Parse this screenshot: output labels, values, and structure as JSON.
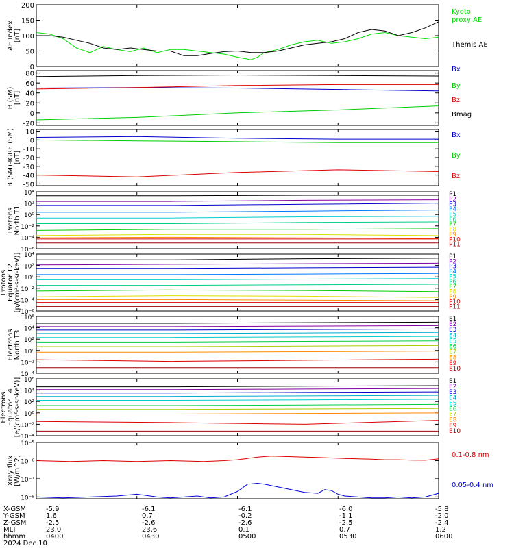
{
  "time_axis": {
    "start": "0400",
    "end": "0600",
    "date": "2024 Dec 10"
  },
  "footer": {
    "rows": [
      {
        "label": "X-GSM",
        "values": [
          "-5.9",
          "-6.1",
          "-6.1",
          "-6.0",
          "-5.8"
        ]
      },
      {
        "label": "Y-GSM",
        "values": [
          "1.6",
          "0.7",
          "-0.2",
          "-1.1",
          "-2.0"
        ]
      },
      {
        "label": "Z-GSM",
        "values": [
          "-2.5",
          "-2.6",
          "-2.6",
          "-2.5",
          "-2.4"
        ]
      },
      {
        "label": "MLT",
        "values": [
          "23.0",
          "23.6",
          "0.1",
          "0.7",
          "1.2"
        ]
      },
      {
        "label": "hhmm",
        "values": [
          "0400",
          "0430",
          "0500",
          "0530",
          "0600"
        ]
      }
    ],
    "date": "2024 Dec 10"
  },
  "chart_data": [
    {
      "type": "line",
      "id": "ae",
      "ylabel": [
        "AE Index",
        "[nT]"
      ],
      "ylim": [
        0,
        200
      ],
      "yticks": [
        "0",
        "50",
        "100",
        "150",
        "200"
      ],
      "scale": "linear",
      "series": [
        {
          "name": "Kyoto proxy AE",
          "legend": [
            "Kyoto",
            "proxy AE"
          ],
          "color": "#00dd00",
          "x": [
            0,
            4,
            8,
            12,
            16,
            20,
            24,
            28,
            32,
            36,
            40,
            44,
            48,
            52,
            56,
            60,
            64,
            66,
            68,
            72,
            76,
            80,
            84,
            88,
            92,
            96,
            100,
            104,
            108,
            112,
            116,
            120
          ],
          "y": [
            110,
            105,
            90,
            60,
            45,
            65,
            55,
            48,
            60,
            45,
            55,
            55,
            50,
            45,
            40,
            30,
            22,
            30,
            45,
            55,
            70,
            80,
            85,
            75,
            80,
            90,
            105,
            110,
            100,
            95,
            90,
            95
          ]
        },
        {
          "name": "Themis AE",
          "legend": [
            "Themis AE"
          ],
          "color": "#000000",
          "x": [
            0,
            4,
            8,
            12,
            16,
            20,
            24,
            28,
            32,
            36,
            40,
            44,
            48,
            52,
            56,
            60,
            64,
            68,
            72,
            76,
            80,
            84,
            88,
            92,
            96,
            100,
            104,
            108,
            112,
            116,
            120
          ],
          "y": [
            100,
            100,
            95,
            85,
            75,
            60,
            55,
            60,
            55,
            50,
            50,
            35,
            35,
            42,
            48,
            50,
            45,
            45,
            50,
            60,
            70,
            75,
            80,
            90,
            110,
            120,
            115,
            100,
            110,
            125,
            145
          ]
        }
      ]
    },
    {
      "type": "line",
      "id": "bsm",
      "ylabel": [
        "B (SM)",
        "[nT]"
      ],
      "ylim": [
        -25,
        85
      ],
      "yticks": [
        "-20",
        "0",
        "20",
        "40",
        "60",
        "80"
      ],
      "scale": "linear",
      "series": [
        {
          "name": "Bx",
          "color": "#0000cc",
          "x": [
            0,
            30,
            60,
            90,
            120
          ],
          "y": [
            50,
            51,
            50,
            47,
            44
          ]
        },
        {
          "name": "By",
          "color": "#00cc00",
          "x": [
            0,
            30,
            60,
            90,
            120
          ],
          "y": [
            -14,
            -9,
            0,
            6,
            14
          ]
        },
        {
          "name": "Bz",
          "color": "#dd0000",
          "x": [
            0,
            30,
            60,
            90,
            120
          ],
          "y": [
            48,
            51,
            55,
            57,
            57
          ]
        },
        {
          "name": "Bmag",
          "color": "#000000",
          "x": [
            0,
            30,
            60,
            90,
            120
          ],
          "y": [
            73,
            75,
            76,
            75,
            74
          ]
        }
      ]
    },
    {
      "type": "line",
      "id": "bigrf",
      "ylabel": [
        "B (SM)-IGRF (SM)",
        "[nT]"
      ],
      "ylim": [
        -52,
        12
      ],
      "yticks": [
        "-50",
        "-40",
        "-30",
        "-20",
        "-10",
        "0",
        "10"
      ],
      "scale": "linear",
      "series": [
        {
          "name": "Bx",
          "color": "#0000cc",
          "x": [
            0,
            30,
            60,
            90,
            120
          ],
          "y": [
            3,
            4,
            2,
            1,
            1
          ]
        },
        {
          "name": "By",
          "color": "#00cc00",
          "x": [
            0,
            30,
            60,
            90,
            120
          ],
          "y": [
            0,
            -1,
            -2,
            -3,
            -3
          ]
        },
        {
          "name": "Bz",
          "color": "#dd0000",
          "x": [
            0,
            30,
            60,
            90,
            120
          ],
          "y": [
            -40,
            -42,
            -37,
            -34,
            -36
          ]
        }
      ]
    },
    {
      "type": "line",
      "id": "p_north",
      "ylabel": [
        "Protons",
        "North T1"
      ],
      "ylim_exp": [
        -6,
        4
      ],
      "ytick_exps": [
        -6,
        -4,
        -2,
        0,
        2,
        4
      ],
      "scale": "log",
      "series": [
        {
          "name": "P1",
          "color": "#000000",
          "y_exp": [
            3.3,
            3.3,
            3.4,
            3.4
          ]
        },
        {
          "name": "P2",
          "color": "#8000a0",
          "y_exp": [
            2.3,
            2.3,
            2.5,
            2.6
          ]
        },
        {
          "name": "P3",
          "color": "#0000cc",
          "y_exp": [
            1.6,
            1.6,
            1.8,
            2.0
          ]
        },
        {
          "name": "P4",
          "color": "#0077ff",
          "y_exp": [
            0.4,
            0.4,
            0.6,
            0.8
          ]
        },
        {
          "name": "P5",
          "color": "#00cccc",
          "y_exp": [
            -0.6,
            -0.6,
            -0.4,
            -0.3
          ]
        },
        {
          "name": "P6",
          "color": "#00cc88",
          "y_exp": [
            -1.6,
            -1.6,
            -1.4,
            -1.3
          ]
        },
        {
          "name": "P7",
          "color": "#00cc00",
          "y_exp": [
            -2.8,
            -2.6,
            -2.6,
            -2.5
          ]
        },
        {
          "name": "P8",
          "color": "#dddd00",
          "y_exp": [
            -3.7,
            -3.5,
            -3.5,
            -3.7
          ]
        },
        {
          "name": "P9",
          "color": "#ff8800",
          "y_exp": [
            -4.1,
            -4.0,
            -4.1,
            -4.2
          ]
        },
        {
          "name": "P10",
          "color": "#dd0000",
          "y_exp": [
            -4.3,
            -4.3,
            -4.3,
            -4.3
          ]
        },
        {
          "name": "P11",
          "color": "#990000",
          "y_exp": [
            -5.0,
            -5.0,
            -5.0,
            -5.0
          ]
        }
      ]
    },
    {
      "type": "line",
      "id": "p_equator",
      "ylabel": [
        "Protons",
        "Equator T2",
        "[p/(cm²-s-sr-keV)]"
      ],
      "ylim_exp": [
        -6,
        4
      ],
      "ytick_exps": [
        -6,
        -4,
        -2,
        0,
        2,
        4
      ],
      "scale": "log",
      "series": [
        {
          "name": "P1",
          "color": "#000000",
          "y_exp": [
            3.0,
            3.0,
            3.2,
            3.3
          ]
        },
        {
          "name": "P2",
          "color": "#8000a0",
          "y_exp": [
            2.1,
            2.2,
            2.3,
            2.4
          ]
        },
        {
          "name": "P3",
          "color": "#0000cc",
          "y_exp": [
            1.5,
            1.5,
            1.6,
            1.7
          ]
        },
        {
          "name": "P4",
          "color": "#0077ff",
          "y_exp": [
            0.4,
            0.4,
            0.5,
            0.6
          ]
        },
        {
          "name": "P5",
          "color": "#00cccc",
          "y_exp": [
            -0.5,
            -0.5,
            -0.4,
            -0.3
          ]
        },
        {
          "name": "P6",
          "color": "#00cc88",
          "y_exp": [
            -1.5,
            -1.5,
            -1.4,
            -1.3
          ]
        },
        {
          "name": "P7",
          "color": "#00cc00",
          "y_exp": [
            -2.5,
            -2.3,
            -2.4,
            -2.6
          ]
        },
        {
          "name": "P8",
          "color": "#dddd00",
          "y_exp": [
            -3.5,
            -3.3,
            -3.4,
            -3.6
          ]
        },
        {
          "name": "P9",
          "color": "#ff8800",
          "y_exp": [
            -4.0,
            -4.0,
            -4.1,
            -4.2
          ]
        },
        {
          "name": "P10",
          "color": "#dd0000",
          "y_exp": [
            -4.5,
            -4.5,
            -4.5,
            -4.5
          ]
        },
        {
          "name": "P11",
          "color": "#990000",
          "y_exp": [
            -5.2,
            -5.2,
            -5.2,
            -5.2
          ]
        }
      ]
    },
    {
      "type": "line",
      "id": "e_north",
      "ylabel": [
        "Electrons",
        "North T3"
      ],
      "ylim_exp": [
        -4,
        6
      ],
      "ytick_exps": [
        -4,
        -2,
        0,
        2,
        4,
        6
      ],
      "scale": "log",
      "series": [
        {
          "name": "E1",
          "color": "#000000",
          "y_exp": [
            4.8,
            4.8,
            4.9,
            5.0
          ]
        },
        {
          "name": "E2",
          "color": "#8000a0",
          "y_exp": [
            4.2,
            4.2,
            4.3,
            4.4
          ]
        },
        {
          "name": "E3",
          "color": "#0000cc",
          "y_exp": [
            3.6,
            3.6,
            3.7,
            3.8
          ]
        },
        {
          "name": "E4",
          "color": "#00aacc",
          "y_exp": [
            3.0,
            3.0,
            3.1,
            3.2
          ]
        },
        {
          "name": "E5",
          "color": "#00cccc",
          "y_exp": [
            2.3,
            2.3,
            2.4,
            2.5
          ]
        },
        {
          "name": "E6",
          "color": "#00cc44",
          "y_exp": [
            1.5,
            1.5,
            1.6,
            1.7
          ]
        },
        {
          "name": "E7",
          "color": "#aacc00",
          "y_exp": [
            0.7,
            0.7,
            0.8,
            0.9
          ]
        },
        {
          "name": "E8",
          "color": "#ff8800",
          "y_exp": [
            -0.3,
            -0.3,
            -0.2,
            -0.1
          ]
        },
        {
          "name": "E9",
          "color": "#dd0000",
          "y_exp": [
            -1.6,
            -1.9,
            -1.7,
            -1.5
          ]
        },
        {
          "name": "E10",
          "color": "#990000",
          "y_exp": [
            -3.0,
            -3.0,
            -3.0,
            -3.0
          ]
        }
      ]
    },
    {
      "type": "line",
      "id": "e_equator",
      "ylabel": [
        "Electrons",
        "Equator T4",
        "[e/(cm²-s-sr-keV)]"
      ],
      "ylim_exp": [
        -4,
        6
      ],
      "ytick_exps": [
        -4,
        -2,
        0,
        2,
        4,
        6
      ],
      "scale": "log",
      "series": [
        {
          "name": "E1",
          "color": "#000000",
          "y_exp": [
            4.6,
            4.6,
            4.7,
            4.8
          ]
        },
        {
          "name": "E2",
          "color": "#8000a0",
          "y_exp": [
            4.1,
            4.1,
            4.2,
            4.3
          ]
        },
        {
          "name": "E3",
          "color": "#0000cc",
          "y_exp": [
            3.5,
            3.5,
            3.6,
            3.7
          ]
        },
        {
          "name": "E4",
          "color": "#00aacc",
          "y_exp": [
            2.9,
            2.9,
            3.0,
            3.1
          ]
        },
        {
          "name": "E5",
          "color": "#00cccc",
          "y_exp": [
            2.2,
            2.2,
            2.3,
            2.4
          ]
        },
        {
          "name": "E6",
          "color": "#00cc44",
          "y_exp": [
            1.3,
            1.3,
            1.4,
            1.5
          ]
        },
        {
          "name": "E7",
          "color": "#aacc00",
          "y_exp": [
            0.6,
            0.6,
            0.7,
            0.8
          ]
        },
        {
          "name": "E8",
          "color": "#ff8800",
          "y_exp": [
            -0.2,
            -0.2,
            -0.1,
            0.0
          ]
        },
        {
          "name": "E9",
          "color": "#dd0000",
          "y_exp": [
            -1.5,
            -1.7,
            -2.0,
            -1.3
          ]
        },
        {
          "name": "E10",
          "color": "#990000",
          "y_exp": [
            -3.2,
            -3.2,
            -3.2,
            -3.2
          ]
        }
      ]
    },
    {
      "type": "line",
      "id": "xray",
      "ylabel": [
        "Xray flux",
        "[W/m^2]"
      ],
      "ylim_exp": [
        -8.1,
        -5
      ],
      "ytick_exps": [
        -8,
        -7,
        -6,
        -5
      ],
      "scale": "log",
      "series": [
        {
          "name": "0.1-0.8 nm",
          "color": "#dd0000",
          "x": [
            0,
            10,
            20,
            30,
            40,
            50,
            56,
            60,
            66,
            70,
            76,
            80,
            84,
            88,
            92,
            96,
            100,
            104,
            108,
            112,
            116,
            120
          ],
          "y_exp": [
            -6.0,
            -6.05,
            -6.0,
            -6.05,
            -6.0,
            -6.05,
            -6.0,
            -5.95,
            -5.8,
            -5.75,
            -5.78,
            -5.8,
            -5.82,
            -5.85,
            -5.88,
            -5.9,
            -5.92,
            -5.95,
            -5.95,
            -5.97,
            -5.98,
            -5.9
          ]
        },
        {
          "name": "0.05-0.4 nm",
          "color": "#0000dd",
          "x": [
            0,
            8,
            16,
            24,
            30,
            36,
            40,
            44,
            48,
            52,
            56,
            60,
            63,
            66,
            68,
            72,
            76,
            80,
            84,
            86,
            88,
            90,
            92,
            96,
            100,
            104,
            108,
            112,
            116,
            120
          ],
          "y_exp": [
            -8.0,
            -8.05,
            -8.0,
            -7.95,
            -7.85,
            -8.0,
            -8.05,
            -8.0,
            -7.95,
            -8.05,
            -8.0,
            -7.7,
            -7.3,
            -7.25,
            -7.3,
            -7.45,
            -7.6,
            -7.75,
            -7.8,
            -7.6,
            -7.65,
            -7.85,
            -7.95,
            -8.0,
            -8.05,
            -8.05,
            -8.0,
            -8.05,
            -8.0,
            -7.8
          ]
        }
      ]
    }
  ]
}
